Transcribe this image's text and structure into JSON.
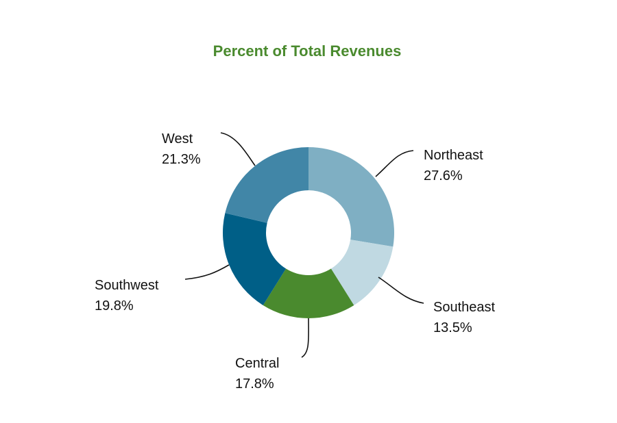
{
  "chart_data": {
    "type": "pie",
    "subtype": "donut",
    "title": "Percent of Total Revenues",
    "title_color": "#4a8a2e",
    "slices": [
      {
        "label": "Northeast",
        "value": 27.6,
        "value_label": "27.6%",
        "color": "#7fafc3"
      },
      {
        "label": "Southeast",
        "value": 13.5,
        "value_label": "13.5%",
        "color": "#c0d9e2"
      },
      {
        "label": "Central",
        "value": 17.8,
        "value_label": "17.8%",
        "color": "#4a8a2e"
      },
      {
        "label": "Southwest",
        "value": 19.8,
        "value_label": "19.8%",
        "color": "#005f87"
      },
      {
        "label": "West",
        "value": 21.3,
        "value_label": "21.3%",
        "color": "#4186a7"
      }
    ]
  }
}
